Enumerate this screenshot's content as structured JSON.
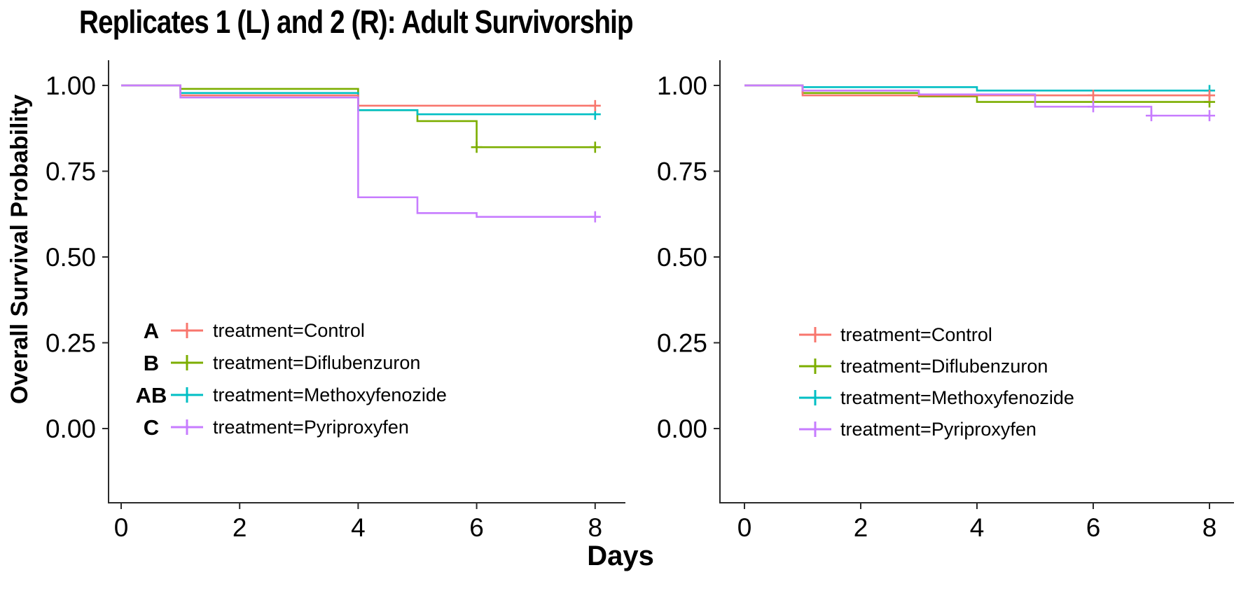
{
  "title": "Replicates 1 (L) and 2 (R): Adult Survivorship",
  "y_axis_label": "Overall Survival Probability",
  "x_axis_label": "Days",
  "colors": {
    "control": "#F8766D",
    "diflubenzuron": "#7CAE00",
    "methoxyfenozide": "#00BFC4",
    "pyriproxyfen": "#C77CFF",
    "axis": "#2b2b2b",
    "text": "#000000"
  },
  "axes": {
    "y_ticks": [
      {
        "label": "1.00",
        "value": 1.0
      },
      {
        "label": "0.75",
        "value": 0.75
      },
      {
        "label": "0.50",
        "value": 0.5
      },
      {
        "label": "0.25",
        "value": 0.25
      },
      {
        "label": "0.00",
        "value": 0.0
      }
    ],
    "x_ticks": [
      {
        "label": "0",
        "value": 0
      },
      {
        "label": "2",
        "value": 2
      },
      {
        "label": "4",
        "value": 4
      },
      {
        "label": "6",
        "value": 6
      },
      {
        "label": "8",
        "value": 8
      }
    ]
  },
  "chart_data": [
    {
      "type": "line",
      "id": "replicate-1-left",
      "xlabel": "Days",
      "ylabel": "Overall Survival Probability",
      "xlim": [
        0,
        8
      ],
      "ylim": [
        0.0,
        1.0
      ],
      "legend_position": "inside-lower-left",
      "legend_has_significance_letters": true,
      "series": [
        {
          "name": "treatment=Control",
          "letter": "A",
          "color_key": "control",
          "steps": [
            [
              0,
              1.0
            ],
            [
              1,
              0.971
            ],
            [
              4,
              0.941
            ],
            [
              8,
              0.941
            ]
          ],
          "censor_marks": [
            [
              8,
              0.941
            ]
          ]
        },
        {
          "name": "treatment=Diflubenzuron",
          "letter": "B",
          "color_key": "diflubenzuron",
          "steps": [
            [
              0,
              1.0
            ],
            [
              1,
              0.99
            ],
            [
              4,
              0.928
            ],
            [
              5,
              0.896
            ],
            [
              6,
              0.82
            ],
            [
              8,
              0.82
            ]
          ],
          "censor_marks": [
            [
              6,
              0.82
            ],
            [
              8,
              0.82
            ]
          ]
        },
        {
          "name": "treatment=Methoxyfenozide",
          "letter": "AB",
          "color_key": "methoxyfenozide",
          "steps": [
            [
              0,
              1.0
            ],
            [
              1,
              0.978
            ],
            [
              4,
              0.928
            ],
            [
              5,
              0.916
            ],
            [
              8,
              0.916
            ]
          ],
          "censor_marks": [
            [
              8,
              0.916
            ]
          ]
        },
        {
          "name": "treatment=Pyriproxyfen",
          "letter": "C",
          "color_key": "pyriproxyfen",
          "steps": [
            [
              0,
              1.0
            ],
            [
              1,
              0.965
            ],
            [
              4,
              0.674
            ],
            [
              5,
              0.628
            ],
            [
              6,
              0.617
            ],
            [
              8,
              0.617
            ]
          ],
          "censor_marks": [
            [
              8,
              0.617
            ]
          ]
        }
      ]
    },
    {
      "type": "line",
      "id": "replicate-2-right",
      "xlabel": "Days",
      "ylabel": "Overall Survival Probability",
      "xlim": [
        0,
        8
      ],
      "ylim": [
        0.0,
        1.0
      ],
      "legend_position": "inside-lower-left",
      "legend_has_significance_letters": false,
      "series": [
        {
          "name": "treatment=Control",
          "letter": "",
          "color_key": "control",
          "steps": [
            [
              0,
              1.0
            ],
            [
              1,
              0.971
            ],
            [
              8,
              0.971
            ]
          ],
          "censor_marks": [
            [
              6,
              0.971
            ],
            [
              8,
              0.971
            ]
          ]
        },
        {
          "name": "treatment=Diflubenzuron",
          "letter": "",
          "color_key": "diflubenzuron",
          "steps": [
            [
              0,
              1.0
            ],
            [
              1,
              0.978
            ],
            [
              3,
              0.968
            ],
            [
              4,
              0.952
            ],
            [
              8,
              0.952
            ]
          ],
          "censor_marks": [
            [
              8,
              0.952
            ]
          ]
        },
        {
          "name": "treatment=Methoxyfenozide",
          "letter": "",
          "color_key": "methoxyfenozide",
          "steps": [
            [
              0,
              1.0
            ],
            [
              1,
              0.995
            ],
            [
              4,
              0.985
            ],
            [
              8,
              0.985
            ]
          ],
          "censor_marks": [
            [
              8,
              0.985
            ]
          ]
        },
        {
          "name": "treatment=Pyriproxyfen",
          "letter": "",
          "color_key": "pyriproxyfen",
          "steps": [
            [
              0,
              1.0
            ],
            [
              1,
              0.985
            ],
            [
              3,
              0.974
            ],
            [
              5,
              0.938
            ],
            [
              7,
              0.912
            ],
            [
              8,
              0.912
            ]
          ],
          "censor_marks": [
            [
              6,
              0.938
            ],
            [
              7,
              0.912
            ],
            [
              8,
              0.912
            ]
          ]
        }
      ]
    }
  ]
}
